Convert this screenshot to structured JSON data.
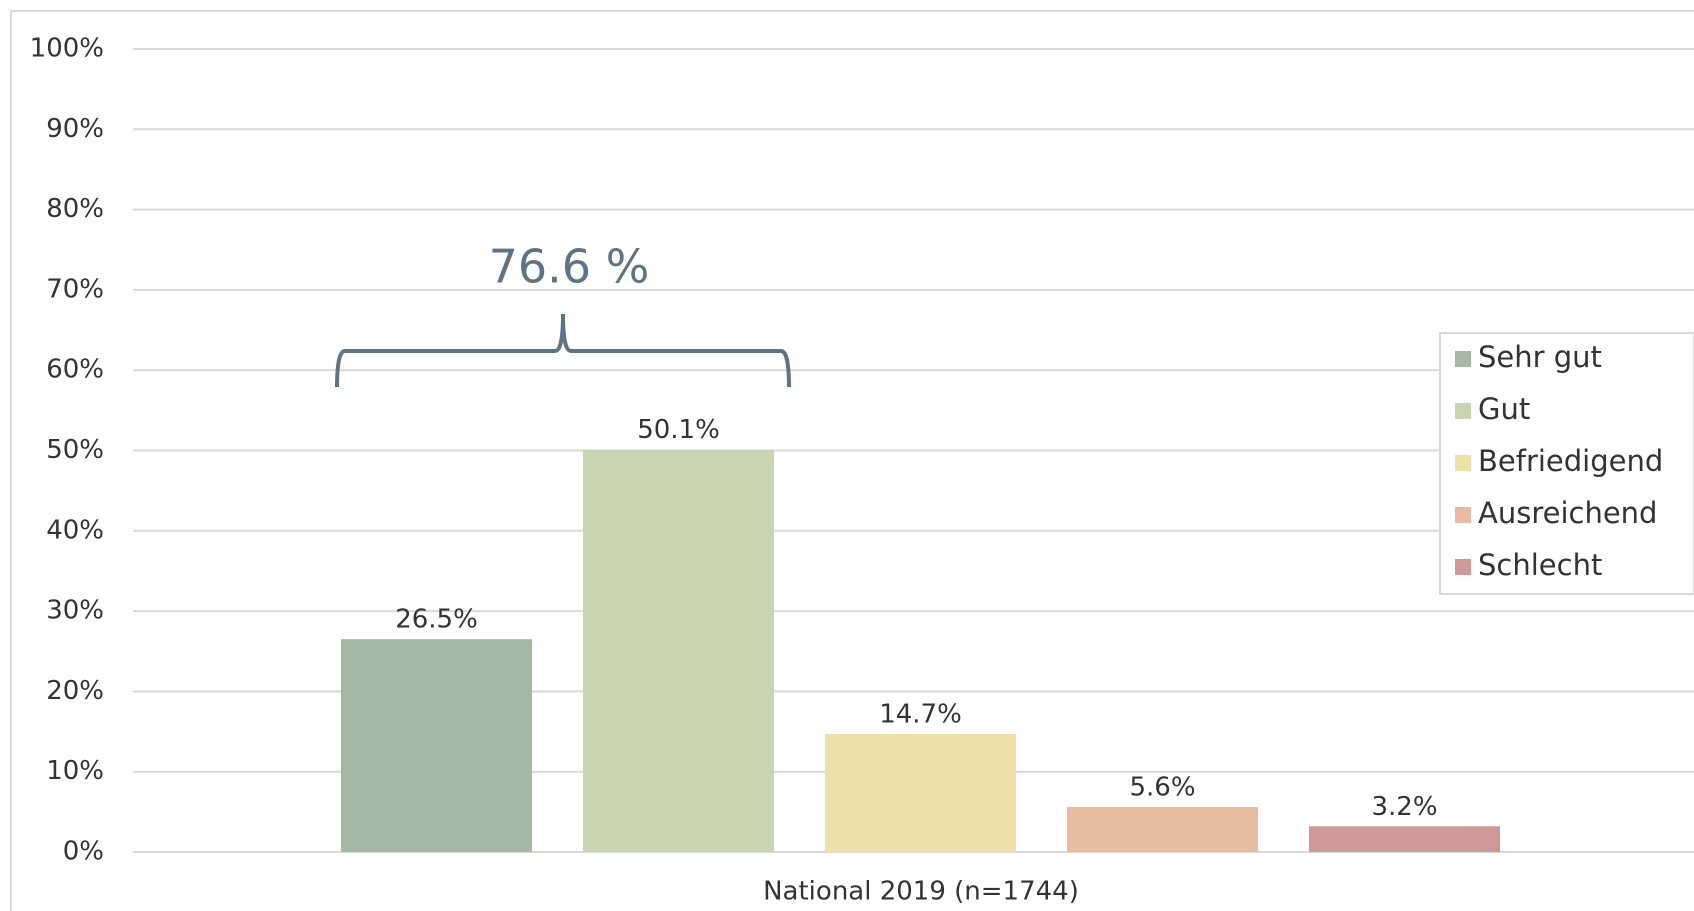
{
  "chart_data": {
    "type": "bar",
    "categories": [
      "National 2019 (n=1744)"
    ],
    "series": [
      {
        "name": "Sehr gut",
        "color": "#a4b8a4",
        "values": [
          26.5
        ],
        "value_labels": [
          "26.5%"
        ]
      },
      {
        "name": "Gut",
        "color": "#c9d4b0",
        "values": [
          50.1
        ],
        "value_labels": [
          "50.1%"
        ]
      },
      {
        "name": "Befriedigend",
        "color": "#ede0a8",
        "values": [
          14.7
        ],
        "value_labels": [
          "14.7%"
        ]
      },
      {
        "name": "Ausreichend",
        "color": "#e8bca0",
        "values": [
          5.6
        ],
        "value_labels": [
          "5.6%"
        ]
      },
      {
        "name": "Schlecht",
        "color": "#d09898",
        "values": [
          3.2
        ],
        "value_labels": [
          "3.2%"
        ]
      }
    ],
    "ylim": [
      0,
      100
    ],
    "yticks": [
      {
        "value": 0,
        "label": "0%"
      },
      {
        "value": 10,
        "label": "10%"
      },
      {
        "value": 20,
        "label": "20%"
      },
      {
        "value": 30,
        "label": "30%"
      },
      {
        "value": 40,
        "label": "40%"
      },
      {
        "value": 50,
        "label": "50%"
      },
      {
        "value": 60,
        "label": "60%"
      },
      {
        "value": 70,
        "label": "70%"
      },
      {
        "value": 80,
        "label": "80%"
      },
      {
        "value": 90,
        "label": "90%"
      },
      {
        "value": 100,
        "label": "100%"
      }
    ],
    "grid": true,
    "legend": "right",
    "annotations": [
      "76.6 %"
    ]
  }
}
